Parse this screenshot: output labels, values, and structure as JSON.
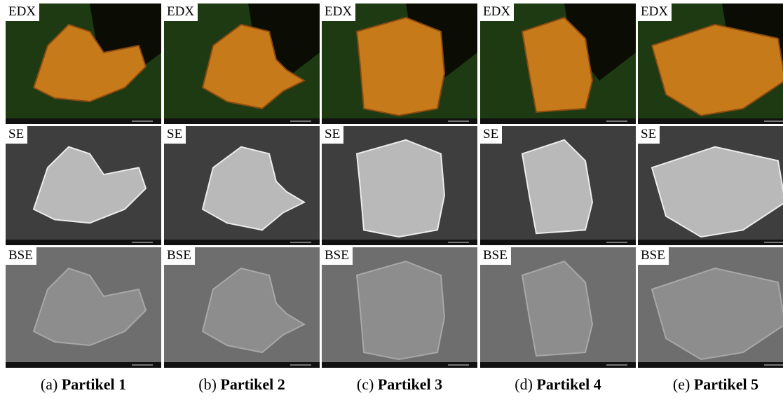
{
  "figure": {
    "columns": [
      {
        "label": "(a)",
        "title": "Partikel 1",
        "panels": [
          "EDX",
          "SE",
          "BSE"
        ]
      },
      {
        "label": "(b)",
        "title": "Partikel 2",
        "panels": [
          "EDX",
          "SE",
          "BSE"
        ]
      },
      {
        "label": "(c)",
        "title": "Partikel 3",
        "panels": [
          "EDX",
          "SE",
          "BSE"
        ]
      },
      {
        "label": "(d)",
        "title": "Partikel 4",
        "panels": [
          "EDX",
          "SE",
          "BSE"
        ]
      },
      {
        "label": "(e)",
        "title": "Partikel 5",
        "panels": [
          "EDX",
          "SE",
          "BSE"
        ]
      }
    ]
  }
}
